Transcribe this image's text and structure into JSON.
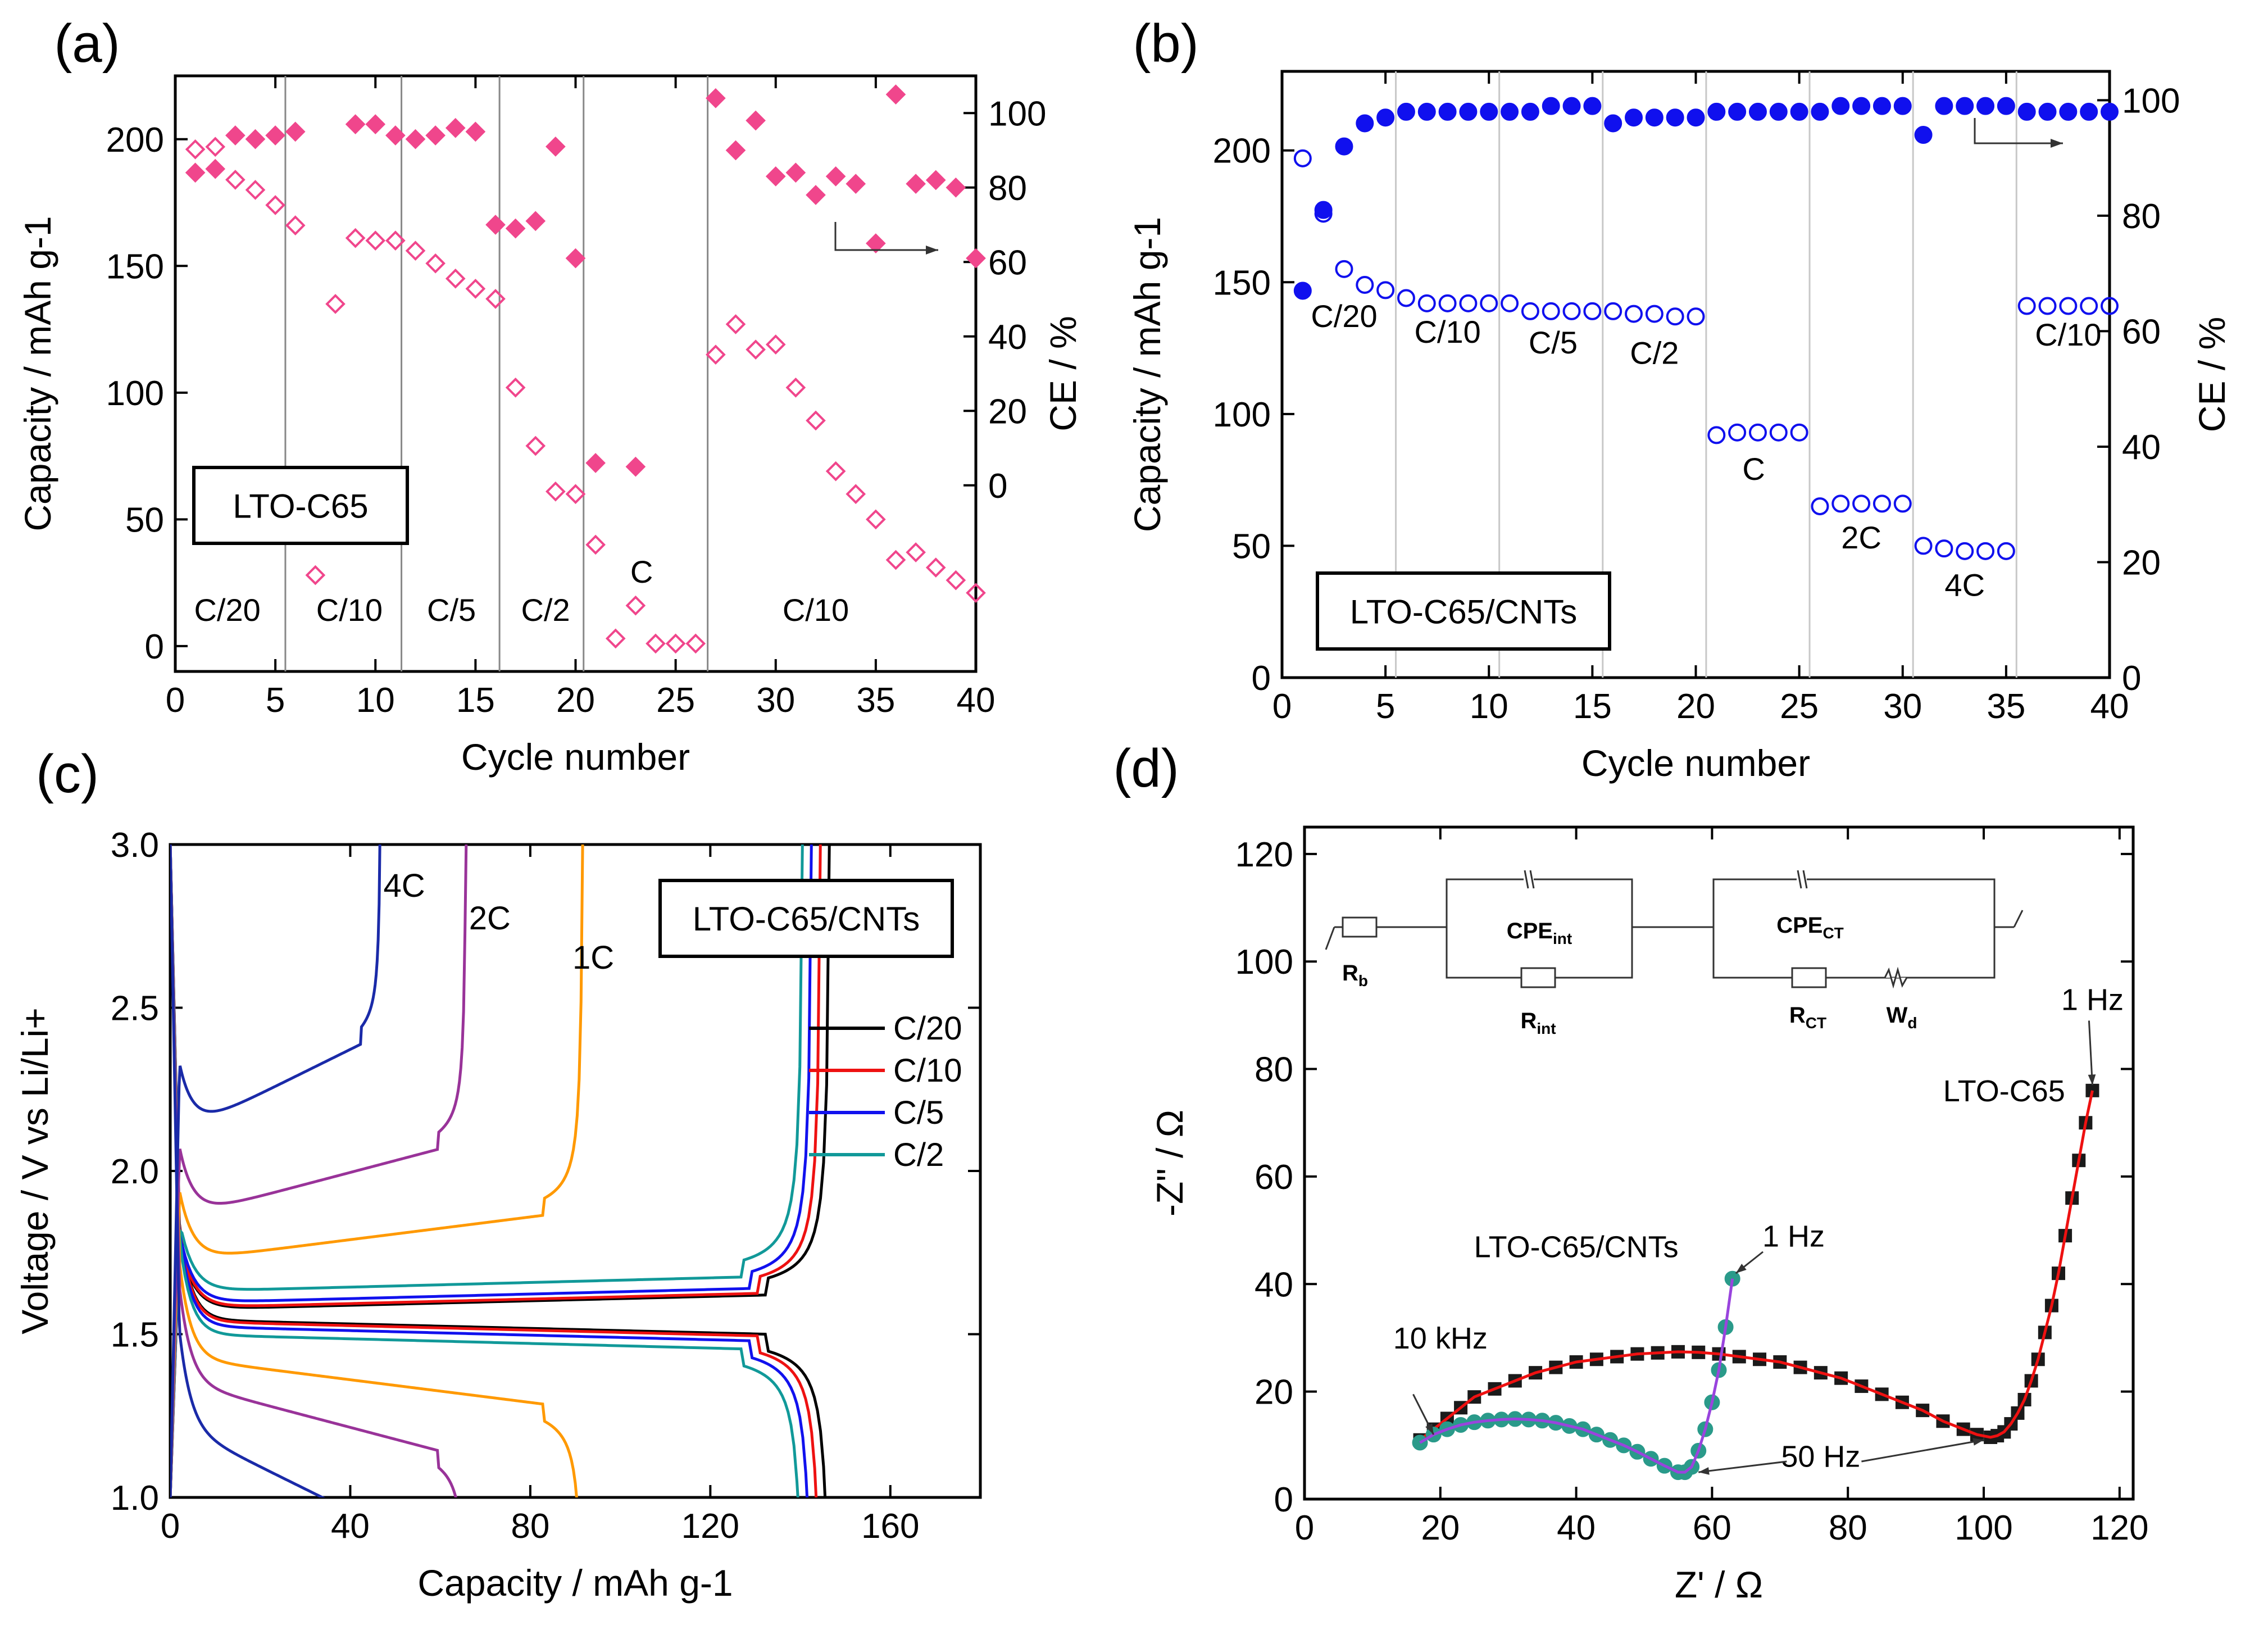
{
  "chart_data": [
    {
      "panel": "(a)",
      "type": "scatter",
      "xlabel": "Cycle number",
      "ylabel": "Capacity / mAh g-1",
      "y2label": "CE / %",
      "xlim": [
        0,
        40
      ],
      "ylim": [
        -10,
        225
      ],
      "y2lim": [
        -50,
        110
      ],
      "xticks": [
        "0",
        "5",
        "10",
        "15",
        "20",
        "25",
        "30",
        "35",
        "40"
      ],
      "yticks": [
        "0",
        "50",
        "100",
        "150",
        "200"
      ],
      "y2ticks": [
        "0",
        "20",
        "40",
        "60",
        "80",
        "100"
      ],
      "legend_box": "LTO-C65",
      "rate_dividers": [
        5.5,
        11.3,
        16.2,
        20.4,
        26.6
      ],
      "rate_labels": [
        {
          "text": "C/20",
          "x": 2.6,
          "y": 10
        },
        {
          "text": "C/10",
          "x": 8.7,
          "y": 10
        },
        {
          "text": "C/5",
          "x": 13.8,
          "y": 10
        },
        {
          "text": "C/2",
          "x": 18.5,
          "y": 10
        },
        {
          "text": "C",
          "x": 23.3,
          "y": 25
        },
        {
          "text": "C/10",
          "x": 32.0,
          "y": 10
        }
      ],
      "series": [
        {
          "name": "Capacity",
          "axis": "left",
          "marker": "open-diamond",
          "color": "#f0468c",
          "x": [
            1,
            2,
            3,
            4,
            5,
            6,
            7,
            8,
            9,
            10,
            11,
            12,
            13,
            14,
            15,
            16,
            17,
            18,
            19,
            20,
            21,
            22,
            23,
            24,
            25,
            26,
            27,
            28,
            29,
            30,
            31,
            32,
            33,
            34,
            35,
            36,
            37,
            38,
            39,
            40
          ],
          "y": [
            196,
            197,
            184,
            180,
            174,
            166,
            28,
            135,
            161,
            160,
            160,
            156,
            151,
            145,
            141,
            137,
            102,
            79,
            61,
            60,
            40,
            3,
            16,
            1,
            1,
            1,
            115,
            127,
            117,
            119,
            102,
            89,
            69,
            60,
            50,
            34,
            37,
            31,
            26,
            21
          ]
        },
        {
          "name": "CE",
          "axis": "right",
          "marker": "filled-diamond",
          "color": "#f0468c",
          "x": [
            1,
            2,
            3,
            4,
            5,
            6,
            7,
            8,
            9,
            10,
            11,
            12,
            13,
            14,
            15,
            16,
            17,
            18,
            19,
            20,
            21,
            22,
            23,
            24,
            25,
            26,
            27,
            28,
            29,
            30,
            31,
            32,
            33,
            34,
            35,
            36,
            37,
            38,
            39,
            40
          ],
          "y": [
            84,
            85,
            94,
            93,
            94,
            95,
            null,
            null,
            97,
            97,
            94,
            93,
            94,
            96,
            95,
            70,
            69,
            71,
            91,
            61,
            6,
            null,
            5,
            null,
            null,
            null,
            104,
            90,
            98,
            83,
            84,
            78,
            83,
            81,
            65,
            105,
            81,
            82,
            80,
            61
          ]
        }
      ],
      "ce_arrow": "right"
    },
    {
      "panel": "(b)",
      "type": "scatter",
      "xlabel": "Cycle number",
      "ylabel": "Capacity / mAh g-1",
      "y2label": "CE / %",
      "xlim": [
        0,
        40
      ],
      "ylim": [
        0,
        230
      ],
      "y2lim": [
        0,
        105
      ],
      "xticks": [
        "0",
        "5",
        "10",
        "15",
        "20",
        "25",
        "30",
        "35",
        "40"
      ],
      "yticks": [
        "0",
        "50",
        "100",
        "150",
        "200"
      ],
      "y2ticks": [
        "0",
        "20",
        "40",
        "60",
        "80",
        "100"
      ],
      "legend_box": "LTO-C65/CNTs",
      "rate_dividers": [
        5.5,
        10.5,
        15.5,
        20.5,
        25.5,
        30.5,
        35.5
      ],
      "rate_labels": [
        {
          "text": "C/20",
          "x": 3.0,
          "y": 133
        },
        {
          "text": "C/10",
          "x": 8.0,
          "y": 127
        },
        {
          "text": "C/5",
          "x": 13.1,
          "y": 123
        },
        {
          "text": "C/2",
          "x": 18.0,
          "y": 119
        },
        {
          "text": "C",
          "x": 22.8,
          "y": 75
        },
        {
          "text": "2C",
          "x": 28.0,
          "y": 49
        },
        {
          "text": "4C",
          "x": 33.0,
          "y": 31
        },
        {
          "text": "C/10",
          "x": 38.0,
          "y": 126
        }
      ],
      "series": [
        {
          "name": "Capacity",
          "axis": "left",
          "marker": "open-circle",
          "color": "#1010ee",
          "x": [
            1,
            2,
            3,
            4,
            5,
            6,
            7,
            8,
            9,
            10,
            11,
            12,
            13,
            14,
            15,
            16,
            17,
            18,
            19,
            20,
            21,
            22,
            23,
            24,
            25,
            26,
            27,
            28,
            29,
            30,
            31,
            32,
            33,
            34,
            35,
            36,
            37,
            38,
            39,
            40
          ],
          "y": [
            197,
            176,
            155,
            149,
            147,
            144,
            142,
            142,
            142,
            142,
            142,
            139,
            139,
            139,
            139,
            139,
            138,
            138,
            137,
            137,
            92,
            93,
            93,
            93,
            93,
            65,
            66,
            66,
            66,
            66,
            50,
            49,
            48,
            48,
            48,
            141,
            141,
            141,
            141,
            141
          ]
        },
        {
          "name": "CE",
          "axis": "right",
          "marker": "filled-circle",
          "color": "#1010ee",
          "x": [
            1,
            2,
            3,
            4,
            5,
            6,
            7,
            8,
            9,
            10,
            11,
            12,
            13,
            14,
            15,
            16,
            17,
            18,
            19,
            20,
            21,
            22,
            23,
            24,
            25,
            26,
            27,
            28,
            29,
            30,
            31,
            32,
            33,
            34,
            35,
            36,
            37,
            38,
            39,
            40
          ],
          "y": [
            67,
            81,
            92,
            96,
            97,
            98,
            98,
            98,
            98,
            98,
            98,
            98,
            99,
            99,
            99,
            96,
            97,
            97,
            97,
            97,
            98,
            98,
            98,
            98,
            98,
            98,
            99,
            99,
            99,
            99,
            94,
            99,
            99,
            99,
            99,
            98,
            98,
            98,
            98,
            98
          ]
        }
      ],
      "ce_arrow": "right"
    },
    {
      "panel": "(c)",
      "type": "line",
      "xlabel": "Capacity / mAh g-1",
      "ylabel": "Voltage / V vs Li/Li+",
      "xlim": [
        0,
        180
      ],
      "ylim": [
        1.0,
        3.0
      ],
      "xticks": [
        "0",
        "40",
        "80",
        "120",
        "160"
      ],
      "yticks": [
        "1.0",
        "1.5",
        "2.0",
        "2.5",
        "3.0"
      ],
      "legend_box": "LTO-C65/CNTs",
      "rate_labels": [
        {
          "text": "4C",
          "x": 52,
          "y": 2.84
        },
        {
          "text": "2C",
          "x": 71,
          "y": 2.74
        },
        {
          "text": "1C",
          "x": 94,
          "y": 2.62
        }
      ],
      "legend": [
        "C/20",
        "C/10",
        "C/5",
        "C/2"
      ],
      "series": [
        {
          "name": "C/20",
          "color": "#000000",
          "q": 147,
          "plateau_c": 1.575,
          "plateau_d": 1.545
        },
        {
          "name": "C/10",
          "color": "#ee1111",
          "q": 145,
          "plateau_c": 1.58,
          "plateau_d": 1.54
        },
        {
          "name": "C/5",
          "color": "#1111ee",
          "q": 143,
          "plateau_c": 1.595,
          "plateau_d": 1.525
        },
        {
          "name": "C/2",
          "color": "#119999",
          "q": 141,
          "plateau_c": 1.63,
          "plateau_d": 1.5
        },
        {
          "name": "1C",
          "color": "#ff9900",
          "q": 92,
          "plateau_c": 1.72,
          "plateau_d": 1.43
        },
        {
          "name": "2C",
          "color": "#993399",
          "q": 66,
          "plateau_c": 1.85,
          "plateau_d": 1.36
        },
        {
          "name": "4C",
          "color": "#1a2aa8",
          "q": 47,
          "plateau_c": 2.1,
          "plateau_d": 1.23
        }
      ]
    },
    {
      "panel": "(d)",
      "type": "scatter",
      "xlabel": "Z' / Ω",
      "ylabel": "-Z\" / Ω",
      "xlim": [
        0,
        122
      ],
      "ylim": [
        0,
        125
      ],
      "xticks": [
        "0",
        "20",
        "40",
        "60",
        "80",
        "100",
        "120"
      ],
      "yticks": [
        "0",
        "20",
        "40",
        "60",
        "80",
        "100",
        "120"
      ],
      "annotations": [
        {
          "text": "10 kHz",
          "x": 20,
          "y": 28
        },
        {
          "text": "50 Hz",
          "x": 76,
          "y": 6
        },
        {
          "text": "1 Hz",
          "x": 116,
          "y": 91
        },
        {
          "text": "LTO-C65",
          "x": 103,
          "y": 74
        },
        {
          "text": "LTO-C65/CNTs",
          "x": 40,
          "y": 45
        },
        {
          "text": "1 Hz",
          "x": 72,
          "y": 47
        }
      ],
      "series": [
        {
          "name": "LTO-C65",
          "marker": "filled-square",
          "color": "#1a1a1a",
          "fit_color": "#ee1111",
          "x": [
            17,
            19,
            21,
            23,
            25,
            28,
            31,
            34,
            37,
            40,
            43,
            46,
            49,
            52,
            55,
            58,
            61,
            64,
            67,
            70,
            73,
            76,
            79,
            82,
            85,
            88,
            91,
            94,
            97,
            99,
            101,
            102,
            103,
            104,
            105,
            106,
            107,
            108,
            109,
            110,
            111,
            112,
            113,
            114,
            115,
            116
          ],
          "y": [
            11,
            13,
            15,
            17,
            19,
            20.5,
            22,
            23.5,
            24.5,
            25.5,
            26,
            26.5,
            27,
            27.2,
            27.4,
            27.3,
            27,
            26.5,
            26,
            25.5,
            24.5,
            23.5,
            22.5,
            21,
            19.5,
            18,
            16.5,
            14.5,
            13,
            12,
            11.5,
            11.8,
            12.5,
            14,
            16,
            18.5,
            22,
            26,
            31,
            36,
            42,
            49,
            56,
            63,
            70,
            76
          ]
        },
        {
          "name": "LTO-C65/CNTs",
          "marker": "filled-circle",
          "color": "#2a9a8a",
          "fit_color": "#9944dd",
          "x": [
            17,
            19,
            21,
            23,
            25,
            27,
            29,
            31,
            33,
            35,
            37,
            39,
            41,
            43,
            45,
            47,
            49,
            51,
            53,
            55,
            56,
            57,
            58,
            59,
            60,
            61,
            62,
            63
          ],
          "y": [
            10.5,
            12,
            13,
            13.8,
            14.3,
            14.6,
            14.8,
            14.9,
            14.8,
            14.6,
            14.2,
            13.6,
            13,
            12,
            11,
            10,
            8.8,
            7.5,
            6.2,
            5,
            5,
            6,
            9,
            13,
            18,
            24,
            32,
            41
          ]
        }
      ],
      "circuit": {
        "labels": [
          "Rb",
          "CPEint",
          "Rint",
          "CPECT",
          "RCT",
          "Wd"
        ]
      }
    }
  ],
  "panel_labels": [
    "(a)",
    "(b)",
    "(c)",
    "(d)"
  ]
}
